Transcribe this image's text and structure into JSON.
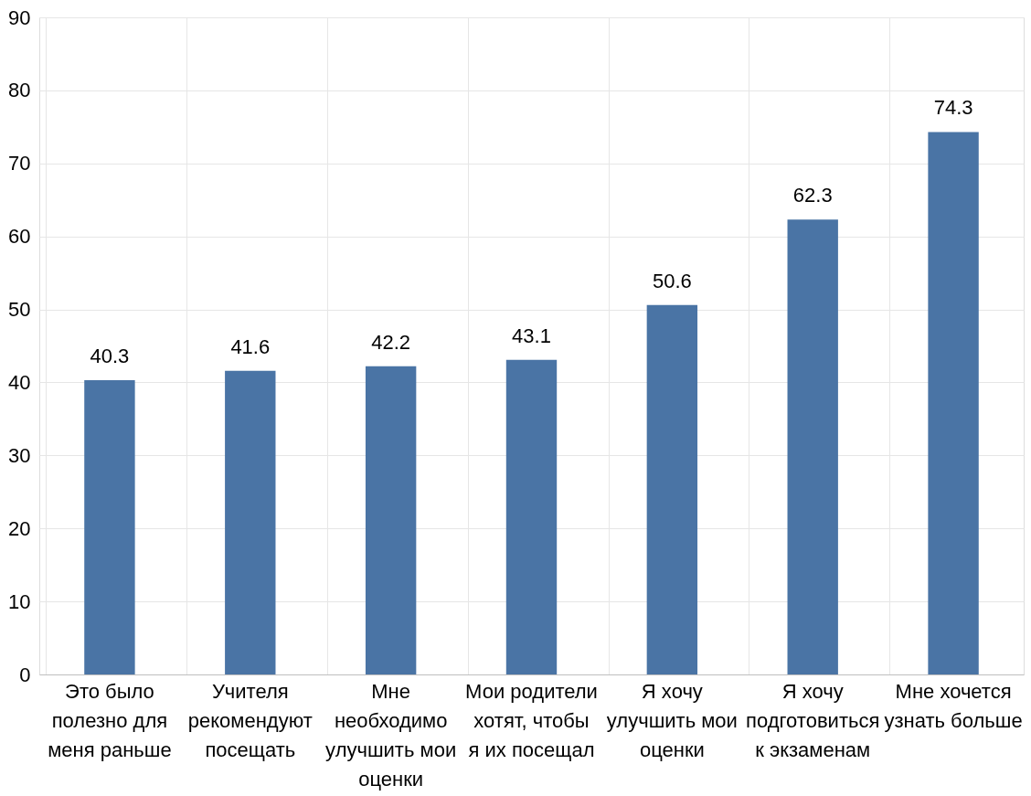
{
  "chart_data": {
    "type": "bar",
    "categories": [
      "Это было полезно для меня раньше",
      "Учителя рекомендуют посещать",
      "Мне необходимо улучшить мои оценки",
      "Мои родители хотят, чтобы я их посещал",
      "Я хочу улучшить мои оценки",
      "Я хочу подготовиться к экзаменам",
      "Мне хочется узнать больше"
    ],
    "values": [
      40.3,
      41.6,
      42.2,
      43.1,
      50.6,
      62.3,
      74.3
    ],
    "color": "#4a74a5",
    "ylim": [
      0,
      90
    ],
    "yticks": [
      0,
      10,
      20,
      30,
      40,
      50,
      60,
      70,
      80,
      90
    ],
    "grid": true,
    "data_labels": true
  }
}
